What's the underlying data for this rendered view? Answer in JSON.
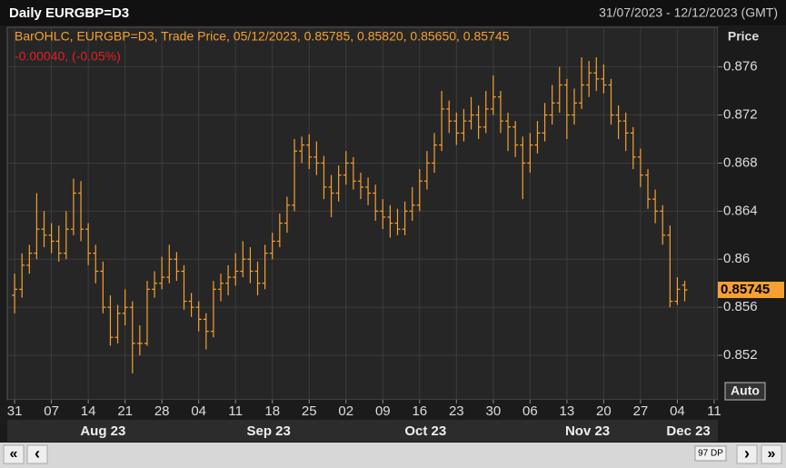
{
  "header": {
    "title": "Daily EURGBP=D3",
    "range": "31/07/2023 - 12/12/2023 (GMT)"
  },
  "chart_data": {
    "type": "ohlc",
    "legend": "BarOHLC, EURGBP=D3, Trade Price, 05/12/2023, 0.85785, 0.85820, 0.85650, 0.85745",
    "change": "-0.00040, (-0.05%)",
    "y_axis_label": "Price",
    "color": "#f5a030",
    "grid": true,
    "xlim": [
      -1,
      95.5
    ],
    "ylim": [
      0.8483,
      0.8793
    ],
    "yticks": [
      0.852,
      0.856,
      0.86,
      0.864,
      0.868,
      0.872,
      0.876
    ],
    "xticks": [
      {
        "value": 0,
        "label": "31"
      },
      {
        "value": 5,
        "label": "07"
      },
      {
        "value": 10,
        "label": "14"
      },
      {
        "value": 15,
        "label": "21"
      },
      {
        "value": 20,
        "label": "28"
      },
      {
        "value": 25,
        "label": "04"
      },
      {
        "value": 30,
        "label": "11"
      },
      {
        "value": 35,
        "label": "18"
      },
      {
        "value": 40,
        "label": "25"
      },
      {
        "value": 45,
        "label": "02"
      },
      {
        "value": 50,
        "label": "09"
      },
      {
        "value": 55,
        "label": "16"
      },
      {
        "value": 60,
        "label": "23"
      },
      {
        "value": 65,
        "label": "30"
      },
      {
        "value": 70,
        "label": "06"
      },
      {
        "value": 75,
        "label": "13"
      },
      {
        "value": 80,
        "label": "20"
      },
      {
        "value": 85,
        "label": "27"
      },
      {
        "value": 90,
        "label": "04"
      },
      {
        "value": 95,
        "label": "11"
      }
    ],
    "months": [
      {
        "value": 12,
        "label": "Aug 23"
      },
      {
        "value": 34.5,
        "label": "Sep 23"
      },
      {
        "value": 55.8,
        "label": "Oct 23"
      },
      {
        "value": 77.8,
        "label": "Nov 23"
      },
      {
        "value": 91.5,
        "label": "Dec 23"
      }
    ],
    "ohlc": [
      [
        0.857,
        0.8588,
        0.8555,
        0.8575
      ],
      [
        0.8575,
        0.8605,
        0.8568,
        0.8595
      ],
      [
        0.8595,
        0.8612,
        0.8588,
        0.8605
      ],
      [
        0.8605,
        0.8655,
        0.86,
        0.8625
      ],
      [
        0.8625,
        0.864,
        0.861,
        0.862
      ],
      [
        0.862,
        0.863,
        0.8605,
        0.8615
      ],
      [
        0.8615,
        0.8628,
        0.8598,
        0.8605
      ],
      [
        0.8605,
        0.864,
        0.86,
        0.8625
      ],
      [
        0.8625,
        0.8667,
        0.862,
        0.8655
      ],
      [
        0.8655,
        0.8665,
        0.8615,
        0.8625
      ],
      [
        0.8625,
        0.863,
        0.8595,
        0.8605
      ],
      [
        0.8605,
        0.8612,
        0.858,
        0.859
      ],
      [
        0.859,
        0.8598,
        0.8555,
        0.856
      ],
      [
        0.856,
        0.857,
        0.8528,
        0.8535
      ],
      [
        0.8535,
        0.8562,
        0.853,
        0.8555
      ],
      [
        0.8555,
        0.8575,
        0.8545,
        0.856
      ],
      [
        0.856,
        0.8565,
        0.8505,
        0.853
      ],
      [
        0.853,
        0.8545,
        0.852,
        0.853
      ],
      [
        0.853,
        0.8582,
        0.8528,
        0.8575
      ],
      [
        0.8575,
        0.859,
        0.8568,
        0.858
      ],
      [
        0.858,
        0.8602,
        0.8575,
        0.8585
      ],
      [
        0.8585,
        0.8612,
        0.858,
        0.86
      ],
      [
        0.86,
        0.8606,
        0.8582,
        0.859
      ],
      [
        0.859,
        0.8595,
        0.8558,
        0.8565
      ],
      [
        0.8565,
        0.8572,
        0.8552,
        0.856
      ],
      [
        0.856,
        0.8565,
        0.854,
        0.855
      ],
      [
        0.855,
        0.8555,
        0.8525,
        0.854
      ],
      [
        0.854,
        0.8582,
        0.8535,
        0.8575
      ],
      [
        0.8575,
        0.8588,
        0.8565,
        0.858
      ],
      [
        0.858,
        0.8595,
        0.857,
        0.8585
      ],
      [
        0.8585,
        0.8605,
        0.8578,
        0.859
      ],
      [
        0.859,
        0.8615,
        0.8585,
        0.86
      ],
      [
        0.86,
        0.861,
        0.858,
        0.859
      ],
      [
        0.859,
        0.8598,
        0.857,
        0.858
      ],
      [
        0.858,
        0.8612,
        0.8575,
        0.8605
      ],
      [
        0.8605,
        0.8622,
        0.86,
        0.8615
      ],
      [
        0.8615,
        0.8638,
        0.861,
        0.863
      ],
      [
        0.863,
        0.8652,
        0.8622,
        0.8645
      ],
      [
        0.8645,
        0.87,
        0.864,
        0.869
      ],
      [
        0.869,
        0.8702,
        0.868,
        0.8695
      ],
      [
        0.8695,
        0.8704,
        0.8675,
        0.8685
      ],
      [
        0.8685,
        0.8698,
        0.867,
        0.868
      ],
      [
        0.868,
        0.8686,
        0.865,
        0.866
      ],
      [
        0.866,
        0.867,
        0.8635,
        0.8655
      ],
      [
        0.8655,
        0.8678,
        0.8648,
        0.867
      ],
      [
        0.867,
        0.869,
        0.8662,
        0.868
      ],
      [
        0.868,
        0.8685,
        0.8658,
        0.8665
      ],
      [
        0.8665,
        0.8672,
        0.865,
        0.866
      ],
      [
        0.866,
        0.8668,
        0.8645,
        0.8655
      ],
      [
        0.8655,
        0.8662,
        0.8632,
        0.864
      ],
      [
        0.864,
        0.865,
        0.8625,
        0.8635
      ],
      [
        0.8635,
        0.8645,
        0.8618,
        0.863
      ],
      [
        0.863,
        0.8642,
        0.862,
        0.8625
      ],
      [
        0.8625,
        0.8648,
        0.862,
        0.864
      ],
      [
        0.864,
        0.866,
        0.8632,
        0.8645
      ],
      [
        0.8645,
        0.8675,
        0.864,
        0.8665
      ],
      [
        0.8665,
        0.869,
        0.8658,
        0.868
      ],
      [
        0.868,
        0.8705,
        0.8672,
        0.8695
      ],
      [
        0.8695,
        0.874,
        0.869,
        0.8725
      ],
      [
        0.8725,
        0.8732,
        0.8705,
        0.8715
      ],
      [
        0.8715,
        0.8722,
        0.8695,
        0.8705
      ],
      [
        0.8705,
        0.8725,
        0.8698,
        0.8715
      ],
      [
        0.8715,
        0.8735,
        0.8708,
        0.872
      ],
      [
        0.872,
        0.8728,
        0.87,
        0.871
      ],
      [
        0.871,
        0.874,
        0.8705,
        0.8725
      ],
      [
        0.8725,
        0.8753,
        0.872,
        0.8735
      ],
      [
        0.8735,
        0.874,
        0.8705,
        0.8715
      ],
      [
        0.8715,
        0.8722,
        0.869,
        0.871
      ],
      [
        0.871,
        0.8715,
        0.8685,
        0.8695
      ],
      [
        0.8695,
        0.8702,
        0.865,
        0.868
      ],
      [
        0.868,
        0.8705,
        0.8672,
        0.8695
      ],
      [
        0.8695,
        0.8715,
        0.8688,
        0.8705
      ],
      [
        0.8705,
        0.873,
        0.8698,
        0.872
      ],
      [
        0.872,
        0.8745,
        0.8712,
        0.873
      ],
      [
        0.873,
        0.876,
        0.8722,
        0.8745
      ],
      [
        0.8745,
        0.875,
        0.87,
        0.872
      ],
      [
        0.872,
        0.8742,
        0.8712,
        0.873
      ],
      [
        0.873,
        0.8768,
        0.8725,
        0.8745
      ],
      [
        0.8745,
        0.8765,
        0.8735,
        0.8755
      ],
      [
        0.8755,
        0.8768,
        0.874,
        0.875
      ],
      [
        0.875,
        0.8762,
        0.8738,
        0.8745
      ],
      [
        0.8745,
        0.875,
        0.8712,
        0.872
      ],
      [
        0.872,
        0.8728,
        0.87,
        0.8715
      ],
      [
        0.8715,
        0.8722,
        0.869,
        0.8705
      ],
      [
        0.8705,
        0.871,
        0.8675,
        0.8685
      ],
      [
        0.8685,
        0.8692,
        0.866,
        0.867
      ],
      [
        0.867,
        0.8675,
        0.8642,
        0.865
      ],
      [
        0.865,
        0.8658,
        0.863,
        0.864
      ],
      [
        0.864,
        0.8645,
        0.8612,
        0.862
      ],
      [
        0.862,
        0.8628,
        0.856,
        0.8565
      ],
      [
        0.8565,
        0.8585,
        0.8562,
        0.8575
      ],
      [
        0.85785,
        0.8582,
        0.8565,
        0.85745
      ]
    ]
  },
  "ui": {
    "auto": "Auto",
    "first": "«",
    "prev": "‹",
    "points": "97 DP",
    "next": "›",
    "last": "»"
  }
}
